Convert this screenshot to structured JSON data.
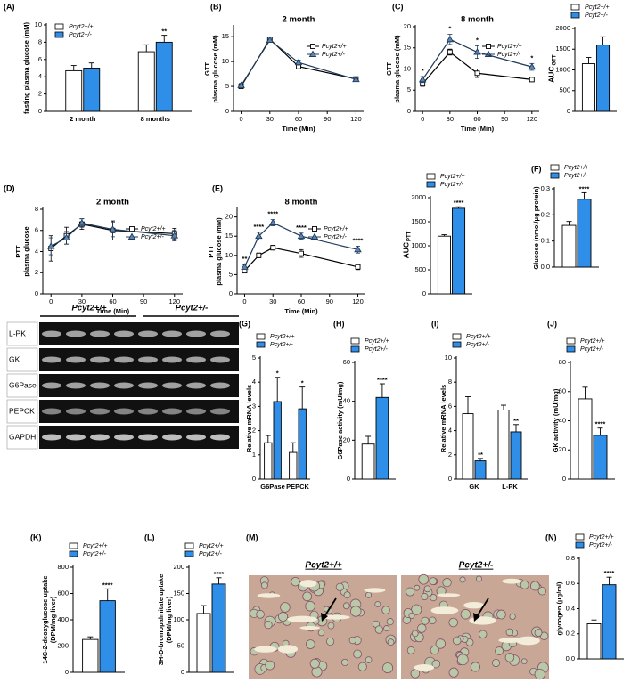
{
  "chart_data": [
    {
      "type": "bar",
      "panel": "(A)",
      "ylabel": "fasting plasma glucose (mM)",
      "categories": [
        "2 month",
        "8 months"
      ],
      "series": [
        {
          "name": "Pcyt2+/+",
          "color": "#ffffff",
          "values": [
            4.7,
            6.9
          ],
          "errors": [
            0.6,
            0.8
          ]
        },
        {
          "name": "Pcyt2+/-",
          "color": "#2f8fe8",
          "values": [
            5.0,
            8.0
          ],
          "errors": [
            0.6,
            0.8
          ],
          "significance": [
            null,
            "**"
          ]
        }
      ],
      "ylim": [
        0,
        10
      ],
      "yticks": [
        0,
        2,
        4,
        6,
        8,
        10
      ],
      "legend": "upper left"
    },
    {
      "type": "line",
      "panel": "(B)",
      "title": "2 month",
      "ylabel": [
        "GTT",
        "plasma glucose (mM)"
      ],
      "xlabel": "Time (Min)",
      "x": [
        0,
        30,
        60,
        120
      ],
      "series": [
        {
          "name": "Pcyt2+/+",
          "color": "#000000",
          "marker": "square",
          "values": [
            5,
            14.5,
            9,
            6.5
          ],
          "errors": [
            0.4,
            0.4,
            0.5,
            0.4
          ]
        },
        {
          "name": "Pcyt2+/-",
          "color": "#1f3a5a",
          "marker": "triangle",
          "values": [
            5.2,
            14.3,
            9.8,
            6.4
          ],
          "errors": [
            0.4,
            0.4,
            0.5,
            0.4
          ]
        }
      ],
      "xlim": [
        -8,
        128
      ],
      "xticks": [
        0,
        30,
        60,
        90,
        120
      ],
      "ylim": [
        0,
        17
      ],
      "yticks": [
        0,
        5,
        10,
        15
      ],
      "legend": "right"
    },
    {
      "type": "line",
      "panel": "(C)",
      "title": "8 month",
      "ylabel": [
        "GTT",
        "plasma glucose (mM)"
      ],
      "xlabel": "Time (Min)",
      "x": [
        0,
        30,
        60,
        120
      ],
      "series": [
        {
          "name": "Pcyt2+/+",
          "color": "#000000",
          "marker": "square",
          "values": [
            6.5,
            14,
            9,
            7.5
          ],
          "errors": [
            0.6,
            0.7,
            1.0,
            0.5
          ]
        },
        {
          "name": "Pcyt2+/-",
          "color": "#1f3a5a",
          "marker": "triangle",
          "values": [
            7.5,
            17,
            14,
            10.5
          ],
          "errors": [
            0.7,
            1.2,
            1.5,
            0.8
          ],
          "significance": [
            "*",
            "*",
            "*",
            "*"
          ]
        }
      ],
      "xlim": [
        -8,
        128
      ],
      "xticks": [
        0,
        30,
        60,
        90,
        120
      ],
      "ylim": [
        0,
        20
      ],
      "yticks": [
        0,
        5,
        10,
        15,
        20
      ],
      "legend": "right"
    },
    {
      "type": "bar",
      "ylabel": "AUC",
      "ylabel_sub": "GTT",
      "series": [
        {
          "name": "Pcyt2+/+",
          "color": "#ffffff",
          "values": [
            1150
          ],
          "errors": [
            150
          ]
        },
        {
          "name": "Pcyt2+/-",
          "color": "#2f8fe8",
          "values": [
            1600
          ],
          "errors": [
            200
          ]
        }
      ],
      "ylim": [
        0,
        2000
      ],
      "yticks": [
        0,
        500,
        1000,
        1500,
        2000
      ],
      "legend": "above"
    },
    {
      "type": "line",
      "panel": "(D)",
      "title": "2 month",
      "ylabel": [
        "PTT",
        "plasma glucose"
      ],
      "xlabel": "Time (Min)",
      "x": [
        0,
        15,
        30,
        60,
        120
      ],
      "series": [
        {
          "name": "Pcyt2+/+",
          "color": "#000000",
          "marker": "square",
          "values": [
            4.3,
            5.5,
            6.6,
            6.0,
            5.7
          ],
          "errors": [
            1.2,
            0.8,
            0.5,
            0.9,
            0.5
          ]
        },
        {
          "name": "Pcyt2+/-",
          "color": "#1f3a5a",
          "marker": "triangle",
          "values": [
            4.5,
            5.3,
            6.7,
            6.1,
            5.5
          ],
          "errors": [
            0.8,
            0.6,
            0.4,
            0.7,
            0.5
          ]
        }
      ],
      "xlim": [
        -8,
        128
      ],
      "xticks": [
        0,
        30,
        60,
        90,
        120
      ],
      "ylim": [
        0,
        8
      ],
      "yticks": [
        0,
        2,
        4,
        6,
        8
      ],
      "legend": "right"
    },
    {
      "type": "line",
      "panel": "(E)",
      "title": "8 month",
      "ylabel": [
        "PTT",
        "plasma glucose (mM)"
      ],
      "xlabel": "Time (Min)",
      "x": [
        0,
        15,
        30,
        60,
        120
      ],
      "series": [
        {
          "name": "Pcyt2+/+",
          "color": "#000000",
          "marker": "square",
          "values": [
            6,
            10,
            12,
            10.5,
            7
          ],
          "errors": [
            0.5,
            0.6,
            0.6,
            1.0,
            0.7
          ]
        },
        {
          "name": "Pcyt2+/-",
          "color": "#1f3a5a",
          "marker": "triangle",
          "values": [
            7,
            15,
            18.5,
            15,
            11.5
          ],
          "errors": [
            0.6,
            1.0,
            0.8,
            0.8,
            0.9
          ],
          "significance": [
            "**",
            "****",
            "****",
            "****",
            "****"
          ]
        }
      ],
      "xlim": [
        -8,
        128
      ],
      "xticks": [
        0,
        30,
        60,
        90,
        120
      ],
      "ylim": [
        0,
        22
      ],
      "yticks": [
        0,
        5,
        10,
        15,
        20
      ],
      "legend": "right"
    },
    {
      "type": "bar",
      "ylabel": "AUC",
      "ylabel_sub": "PTT",
      "series": [
        {
          "name": "Pcyt2+/+",
          "color": "#ffffff",
          "values": [
            1200
          ],
          "errors": [
            30
          ]
        },
        {
          "name": "Pcyt2+/-",
          "color": "#2f8fe8",
          "values": [
            1780
          ],
          "errors": [
            30
          ],
          "significance": [
            "****"
          ]
        }
      ],
      "ylim": [
        0,
        2000
      ],
      "yticks": [
        0,
        500,
        1000,
        1500,
        2000
      ],
      "legend": "above"
    },
    {
      "type": "bar",
      "panel": "(F)",
      "ylabel": "Glucose (nmol/μg protein)",
      "series": [
        {
          "name": "Pcyt2+/+",
          "color": "#ffffff",
          "values": [
            0.16
          ],
          "errors": [
            0.015
          ]
        },
        {
          "name": "Pcyt2+/-",
          "color": "#2f8fe8",
          "values": [
            0.26
          ],
          "errors": [
            0.025
          ],
          "significance": [
            "****"
          ]
        }
      ],
      "ylim": [
        0,
        0.3
      ],
      "yticks": [
        {
          "value": 0,
          "label": "0.0"
        },
        0.1,
        0.2,
        0.3
      ],
      "legend": "above"
    },
    {
      "type": "bar",
      "panel": "(G)",
      "ylabel": "Relative mRNA levels",
      "categories": [
        "G6Pase",
        "PEPCK"
      ],
      "series": [
        {
          "name": "Pcyt2+/+",
          "color": "#ffffff",
          "values": [
            1.5,
            1.1
          ],
          "errors": [
            0.3,
            0.4
          ]
        },
        {
          "name": "Pcyt2+/-",
          "color": "#2f8fe8",
          "values": [
            3.2,
            2.9
          ],
          "errors": [
            1.0,
            0.9
          ],
          "significance": [
            "*",
            "*"
          ]
        }
      ],
      "ylim": [
        0,
        5
      ],
      "yticks": [
        0,
        1,
        2,
        3,
        4,
        5
      ],
      "legend": "above"
    },
    {
      "type": "bar",
      "panel": "(H)",
      "ylabel": "G6Pase activity (mU/mg)",
      "series": [
        {
          "name": "Pcyt2+/+",
          "color": "#ffffff",
          "values": [
            18
          ],
          "errors": [
            4
          ]
        },
        {
          "name": "Pcyt2+/-",
          "color": "#2f8fe8",
          "values": [
            42
          ],
          "errors": [
            7
          ],
          "significance": [
            "****"
          ]
        }
      ],
      "ylim": [
        0,
        60
      ],
      "yticks": [
        0,
        20,
        40,
        60
      ],
      "legend": "above"
    },
    {
      "type": "bar",
      "panel": "(I)",
      "ylabel": "Relative mRNA levels",
      "categories": [
        "GK",
        "L-PK"
      ],
      "series": [
        {
          "name": "Pcyt2+/+",
          "color": "#ffffff",
          "values": [
            5.4,
            5.7
          ],
          "errors": [
            1.4,
            0.4
          ]
        },
        {
          "name": "Pcyt2+/-",
          "color": "#2f8fe8",
          "values": [
            1.5,
            3.9
          ],
          "errors": [
            0.2,
            0.6
          ],
          "significance": [
            "**",
            "**"
          ]
        }
      ],
      "ylim": [
        0,
        10
      ],
      "yticks": [
        0,
        2,
        4,
        6,
        8,
        10
      ],
      "legend": "above"
    },
    {
      "type": "bar",
      "panel": "(J)",
      "ylabel": "GK activity (mU/mg)",
      "series": [
        {
          "name": "Pcyt2+/+",
          "color": "#ffffff",
          "values": [
            55
          ],
          "errors": [
            8
          ]
        },
        {
          "name": "Pcyt2+/-",
          "color": "#2f8fe8",
          "values": [
            30
          ],
          "errors": [
            5
          ],
          "significance": [
            "****"
          ]
        }
      ],
      "ylim": [
        0,
        80
      ],
      "yticks": [
        0,
        20,
        40,
        60,
        80
      ],
      "legend": "above"
    },
    {
      "type": "bar",
      "panel": "(K)",
      "ylabel": [
        "14C-2-deoxyglucose uptake",
        "(DPM/mg  liver)"
      ],
      "series": [
        {
          "name": "Pcyt2+/+",
          "color": "#ffffff",
          "values": [
            250
          ],
          "errors": [
            20
          ]
        },
        {
          "name": "Pcyt2+/-",
          "color": "#2f8fe8",
          "values": [
            545
          ],
          "errors": [
            90
          ],
          "significance": [
            "****"
          ]
        }
      ],
      "ylim": [
        0,
        800
      ],
      "yticks": [
        0,
        200,
        400,
        600,
        800
      ],
      "legend": "above"
    },
    {
      "type": "bar",
      "panel": "(L)",
      "ylabel": [
        "3H-D-bromopalmitate uptake",
        "(DPM/mg  liver)"
      ],
      "series": [
        {
          "name": "Pcyt2+/+",
          "color": "#ffffff",
          "values": [
            112
          ],
          "errors": [
            15
          ]
        },
        {
          "name": "Pcyt2+/-",
          "color": "#2f8fe8",
          "values": [
            168
          ],
          "errors": [
            12
          ],
          "significance": [
            "****"
          ]
        }
      ],
      "ylim": [
        0,
        200
      ],
      "yticks": [
        0,
        50,
        100,
        150,
        200
      ],
      "legend": "above"
    },
    {
      "type": "bar",
      "panel": "(N)",
      "ylabel": "glycogen (μg/ml)",
      "series": [
        {
          "name": "Pcyt2+/+",
          "color": "#ffffff",
          "values": [
            0.28
          ],
          "errors": [
            0.03
          ]
        },
        {
          "name": "Pcyt2+/-",
          "color": "#2f8fe8",
          "values": [
            0.59
          ],
          "errors": [
            0.06
          ],
          "significance": [
            "****"
          ]
        }
      ],
      "ylim": [
        0,
        0.8
      ],
      "yticks": [
        {
          "value": 0,
          "label": "0.0"
        },
        0.2,
        0.4,
        0.6,
        0.8
      ],
      "legend": "above"
    }
  ],
  "gel": {
    "groups": [
      "Pcyt2+/+",
      "Pcyt2+/-"
    ],
    "bands": [
      "L-PK",
      "GK",
      "G6Pase",
      "PEPCK",
      "GAPDH"
    ]
  },
  "histology": {
    "panel": "(M)",
    "labels": [
      "Pcyt2+/+",
      "Pcyt2+/-"
    ]
  }
}
